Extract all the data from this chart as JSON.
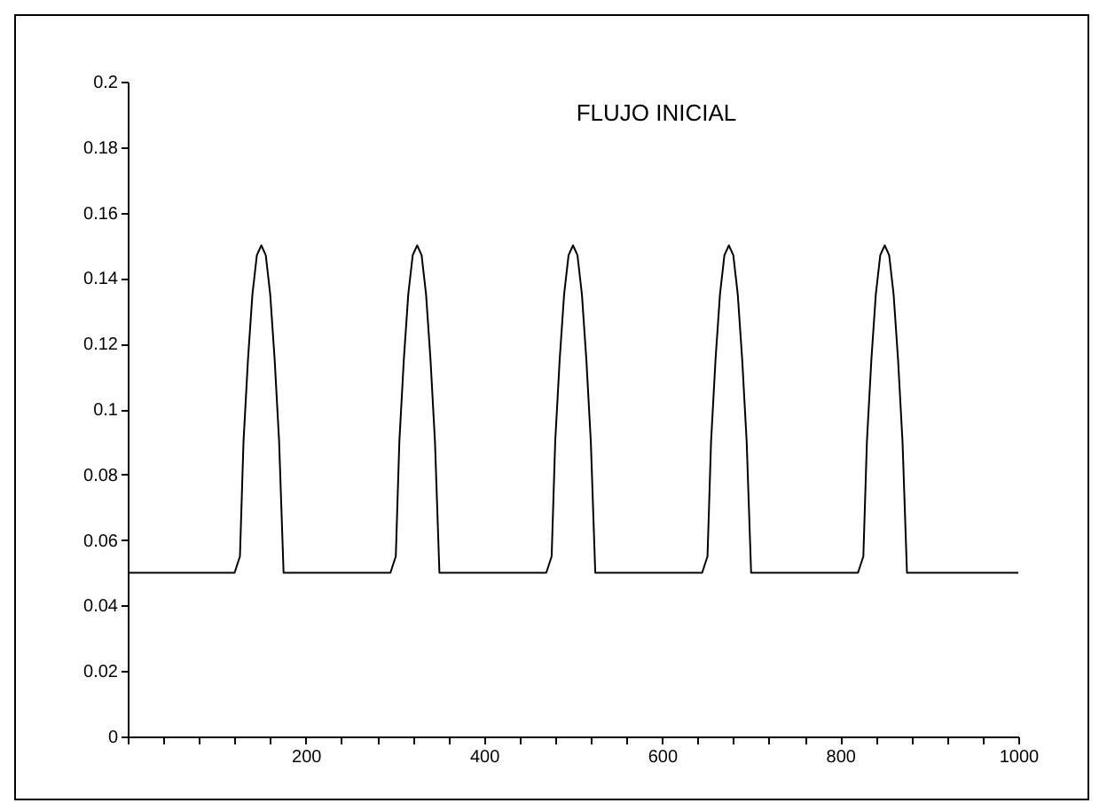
{
  "chart_data": {
    "type": "line",
    "title": "FLUJO INICIAL",
    "x": [
      0,
      120,
      126,
      130,
      135,
      140,
      145,
      150,
      155,
      160,
      165,
      170,
      175,
      295,
      301,
      305,
      310,
      315,
      320,
      325,
      330,
      335,
      340,
      345,
      350,
      470,
      476,
      480,
      485,
      490,
      495,
      500,
      505,
      510,
      515,
      520,
      525,
      645,
      651,
      655,
      660,
      665,
      670,
      675,
      680,
      685,
      690,
      695,
      700,
      820,
      826,
      830,
      835,
      840,
      845,
      850,
      855,
      860,
      865,
      870,
      875,
      1000
    ],
    "series": [
      {
        "color": "#000000",
        "values": [
          0.05,
          0.05,
          0.055,
          0.09,
          0.115,
          0.135,
          0.147,
          0.15,
          0.147,
          0.135,
          0.115,
          0.09,
          0.05,
          0.05,
          0.055,
          0.09,
          0.115,
          0.135,
          0.147,
          0.15,
          0.147,
          0.135,
          0.115,
          0.09,
          0.05,
          0.05,
          0.055,
          0.09,
          0.115,
          0.135,
          0.147,
          0.15,
          0.147,
          0.135,
          0.115,
          0.09,
          0.05,
          0.05,
          0.055,
          0.09,
          0.115,
          0.135,
          0.147,
          0.15,
          0.147,
          0.135,
          0.115,
          0.09,
          0.05,
          0.05,
          0.055,
          0.09,
          0.115,
          0.135,
          0.147,
          0.15,
          0.147,
          0.135,
          0.115,
          0.09,
          0.05,
          0.05
        ]
      }
    ],
    "xlim": [
      0,
      1000
    ],
    "xticks": [
      {
        "value": 0,
        "label": null
      },
      {
        "value": 40,
        "label": null
      },
      {
        "value": 80,
        "label": null
      },
      {
        "value": 120,
        "label": null
      },
      {
        "value": 160,
        "label": null
      },
      200,
      {
        "value": 240,
        "label": null
      },
      {
        "value": 280,
        "label": null
      },
      {
        "value": 320,
        "label": null
      },
      {
        "value": 360,
        "label": null
      },
      400,
      {
        "value": 440,
        "label": null
      },
      {
        "value": 480,
        "label": null
      },
      {
        "value": 520,
        "label": null
      },
      {
        "value": 560,
        "label": null
      },
      600,
      {
        "value": 640,
        "label": null
      },
      {
        "value": 680,
        "label": null
      },
      {
        "value": 720,
        "label": null
      },
      {
        "value": 760,
        "label": null
      },
      800,
      {
        "value": 840,
        "label": null
      },
      {
        "value": 880,
        "label": null
      },
      {
        "value": 920,
        "label": null
      },
      {
        "value": 960,
        "label": null
      },
      1000
    ],
    "ylim": [
      0,
      0.2
    ],
    "yticks": [
      0,
      0.02,
      0.04,
      0.06,
      0.08,
      0.1,
      0.12,
      0.14,
      0.16,
      0.18,
      0.2
    ],
    "grid": false,
    "marker": "none",
    "line_style": "solid"
  }
}
